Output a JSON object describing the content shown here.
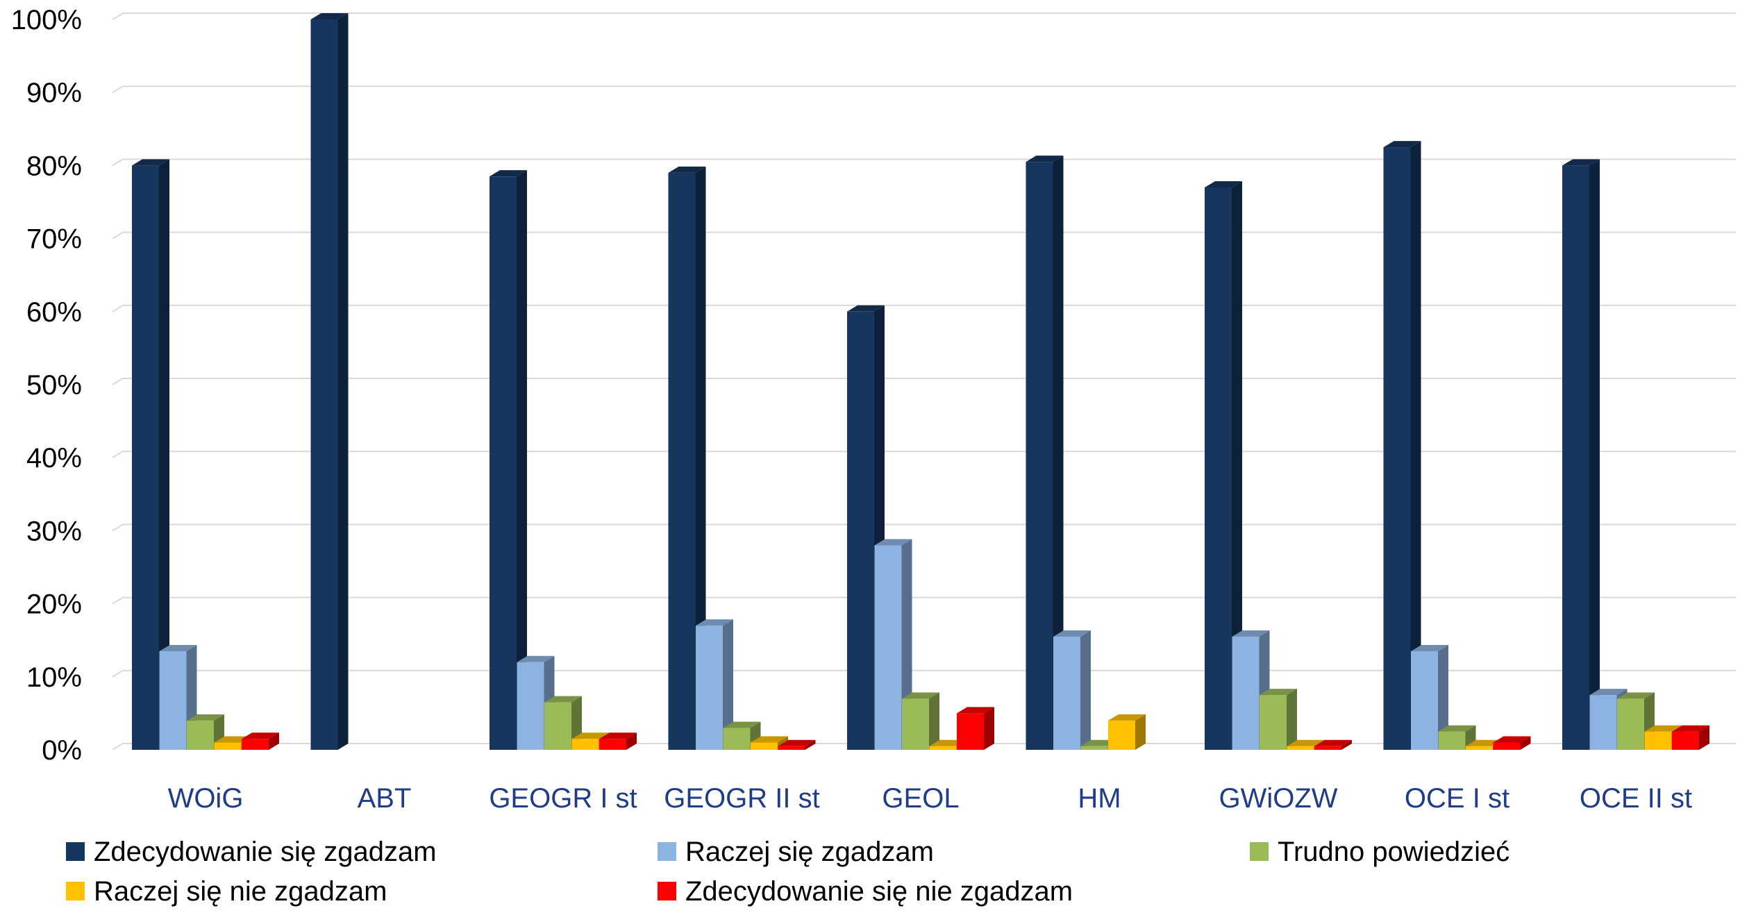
{
  "chart_data": {
    "type": "bar",
    "title": "",
    "xlabel": "",
    "ylabel": "",
    "ylim": [
      0,
      100
    ],
    "y_ticks": [
      "0%",
      "10%",
      "20%",
      "30%",
      "40%",
      "50%",
      "60%",
      "70%",
      "80%",
      "90%",
      "100%"
    ],
    "y_unit": "%",
    "grid": true,
    "legend_position": "bottom",
    "style": "3d-column",
    "categories": [
      "WOiG",
      "ABT",
      "GEOGR I st",
      "GEOGR II st",
      "GEOL",
      "HM",
      "GWiOZW",
      "OCE I st",
      "OCE II st"
    ],
    "series": [
      {
        "name": "Zdecydowanie się zgadzam",
        "color": "#17365d",
        "values": [
          80,
          100,
          78.5,
          79,
          60,
          80.5,
          77,
          82.5,
          80
        ]
      },
      {
        "name": "Raczej się zgadzam",
        "color": "#8db3e2",
        "values": [
          13.5,
          0,
          12,
          17,
          28,
          15.5,
          15.5,
          13.5,
          7.5
        ]
      },
      {
        "name": "Trudno powiedzieć",
        "color": "#9bbb59",
        "values": [
          4,
          0,
          6.5,
          3,
          7,
          0.5,
          7.5,
          2.5,
          7
        ]
      },
      {
        "name": "Raczej się nie zgadzam",
        "color": "#ffc000",
        "values": [
          1,
          0,
          1.5,
          1,
          0.5,
          4,
          0.5,
          0.5,
          2.5
        ]
      },
      {
        "name": "Zdecydowanie się nie zgadzam",
        "color": "#ff0000",
        "values": [
          1.5,
          0,
          1.5,
          0.5,
          5,
          0,
          0.5,
          1,
          2.5
        ]
      }
    ]
  }
}
